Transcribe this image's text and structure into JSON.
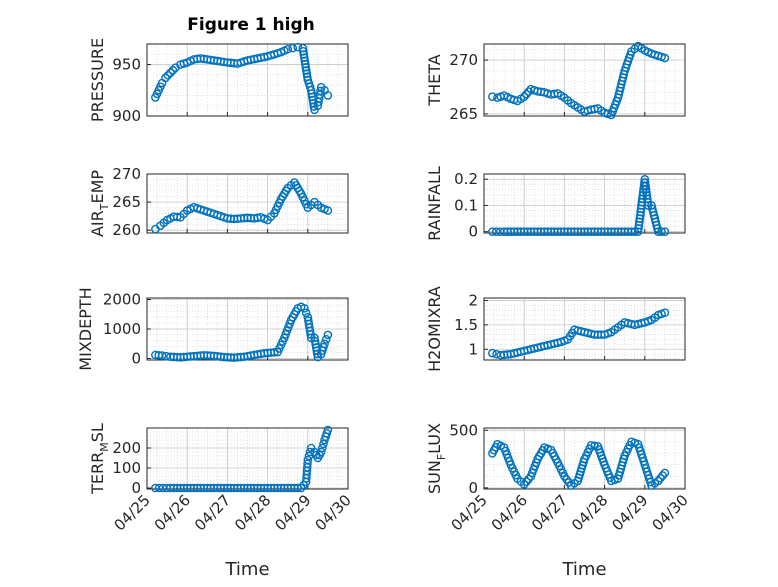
{
  "figure": {
    "title": "Figure 1 high",
    "marker_color": "#0072BD",
    "grid": true
  },
  "chart_data": [
    {
      "type": "scatter",
      "ylabel": "PRESSURE",
      "ylim": [
        900,
        970
      ],
      "yticks": [
        900,
        950
      ],
      "ytick_labels": [
        "900",
        "950"
      ],
      "show_xticks": false,
      "x": [
        "04/25 05:00",
        "04/25 07:00",
        "04/25 09:00",
        "04/25 11:00",
        "04/25 14:00",
        "04/25 17:00",
        "04/25 20:00",
        "04/26 00:00",
        "04/26 04:00",
        "04/26 08:00",
        "04/26 12:00",
        "04/26 16:00",
        "04/26 20:00",
        "04/27 00:00",
        "04/27 06:00",
        "04/27 12:00",
        "04/27 18:00",
        "04/28 00:00",
        "04/28 04:00",
        "04/28 08:00",
        "04/28 12:00",
        "04/28 15:00",
        "04/28 18:00",
        "04/28 21:00",
        "04/29 00:00",
        "04/29 02:00",
        "04/29 04:00",
        "04/29 06:00",
        "04/29 08:00",
        "04/29 10:00",
        "04/29 12:00"
      ],
      "y": [
        918,
        925,
        932,
        937,
        942,
        947,
        950,
        952,
        955,
        956,
        955,
        954,
        953,
        952,
        951,
        954,
        956,
        958,
        960,
        962,
        965,
        966,
        967,
        966,
        935,
        925,
        906,
        910,
        928,
        925,
        920
      ]
    },
    {
      "type": "scatter",
      "ylabel": "THETA",
      "ylim": [
        264.8,
        271.5
      ],
      "yticks": [
        265,
        270
      ],
      "ytick_labels": [
        "265",
        "270"
      ],
      "show_xticks": false,
      "x": [
        "04/25 05:00",
        "04/25 08:00",
        "04/25 12:00",
        "04/25 16:00",
        "04/25 20:00",
        "04/26 00:00",
        "04/26 04:00",
        "04/26 08:00",
        "04/26 12:00",
        "04/26 16:00",
        "04/26 20:00",
        "04/27 00:00",
        "04/27 04:00",
        "04/27 08:00",
        "04/27 12:00",
        "04/27 16:00",
        "04/27 20:00",
        "04/28 00:00",
        "04/28 04:00",
        "04/28 08:00",
        "04/28 12:00",
        "04/28 16:00",
        "04/28 20:00",
        "04/29 00:00",
        "04/29 04:00",
        "04/29 08:00",
        "04/29 12:00"
      ],
      "y": [
        266.6,
        266.5,
        266.7,
        266.4,
        266.2,
        266.6,
        267.3,
        267.1,
        267.0,
        266.8,
        266.9,
        266.5,
        266.0,
        265.6,
        265.2,
        265.4,
        265.5,
        265.1,
        264.9,
        266.5,
        269.0,
        270.8,
        271.3,
        270.9,
        270.6,
        270.4,
        270.2
      ]
    },
    {
      "type": "scatter",
      "ylabel": "AIR_TEMP",
      "ylim": [
        259.5,
        270
      ],
      "yticks": [
        260,
        265,
        270
      ],
      "ytick_labels": [
        "260",
        "265",
        "270"
      ],
      "show_xticks": false,
      "x": [
        "04/25 05:00",
        "04/25 08:00",
        "04/25 12:00",
        "04/25 16:00",
        "04/25 20:00",
        "04/26 00:00",
        "04/26 04:00",
        "04/26 08:00",
        "04/26 12:00",
        "04/26 16:00",
        "04/26 20:00",
        "04/27 00:00",
        "04/27 04:00",
        "04/27 08:00",
        "04/27 12:00",
        "04/27 16:00",
        "04/27 20:00",
        "04/28 00:00",
        "04/28 04:00",
        "04/28 08:00",
        "04/28 12:00",
        "04/28 16:00",
        "04/28 20:00",
        "04/29 00:00",
        "04/29 04:00",
        "04/29 08:00",
        "04/29 12:00"
      ],
      "y": [
        260.2,
        260.8,
        261.8,
        262.4,
        262.3,
        263.5,
        264.1,
        263.7,
        263.3,
        262.9,
        262.5,
        262.1,
        262.0,
        262.1,
        262.2,
        262.1,
        262.3,
        261.8,
        263.0,
        265.5,
        267.5,
        268.5,
        266.5,
        264.0,
        265.0,
        264.0,
        263.5
      ]
    },
    {
      "type": "scatter",
      "ylabel": "RAINFALL",
      "ylim": [
        -0.005,
        0.22
      ],
      "yticks": [
        0,
        0.1,
        0.2
      ],
      "ytick_labels": [
        "0",
        "0.1",
        "0.2"
      ],
      "show_xticks": false,
      "x": [
        "04/25 05:00",
        "04/25 12:00",
        "04/25 20:00",
        "04/26 04:00",
        "04/26 12:00",
        "04/26 20:00",
        "04/27 04:00",
        "04/27 12:00",
        "04/27 20:00",
        "04/28 04:00",
        "04/28 08:00",
        "04/28 12:00",
        "04/28 16:00",
        "04/28 20:00",
        "04/29 00:00",
        "04/29 02:00",
        "04/29 04:00",
        "04/29 08:00",
        "04/29 12:00"
      ],
      "y": [
        0,
        0,
        0,
        0,
        0,
        0,
        0,
        0,
        0,
        0,
        0,
        0,
        0,
        0,
        0.2,
        0.1,
        0.1,
        0,
        0
      ]
    },
    {
      "type": "scatter",
      "ylabel": "MIXDEPTH",
      "ylim": [
        -50,
        2050
      ],
      "yticks": [
        0,
        1000,
        2000
      ],
      "ytick_labels": [
        "0",
        "1000",
        "2000"
      ],
      "show_xticks": false,
      "x": [
        "04/25 05:00",
        "04/25 09:00",
        "04/25 14:00",
        "04/25 20:00",
        "04/26 04:00",
        "04/26 10:00",
        "04/26 16:00",
        "04/26 22:00",
        "04/27 04:00",
        "04/27 10:00",
        "04/27 16:00",
        "04/27 22:00",
        "04/28 02:00",
        "04/28 06:00",
        "04/28 10:00",
        "04/28 14:00",
        "04/28 18:00",
        "04/28 20:00",
        "04/28 22:00",
        "04/29 00:00",
        "04/29 02:00",
        "04/29 04:00",
        "04/29 06:00",
        "04/29 08:00",
        "04/29 10:00",
        "04/29 12:00"
      ],
      "y": [
        120,
        100,
        60,
        40,
        80,
        110,
        90,
        50,
        30,
        60,
        120,
        180,
        200,
        220,
        700,
        1300,
        1700,
        1750,
        1700,
        1400,
        700,
        700,
        50,
        150,
        500,
        800
      ]
    },
    {
      "type": "scatter",
      "ylabel": "H2OMIXRA",
      "ylim": [
        0.78,
        2.05
      ],
      "yticks": [
        1,
        1.5,
        2
      ],
      "ytick_labels": [
        "1",
        "1.5",
        "2"
      ],
      "show_xticks": false,
      "x": [
        "04/25 05:00",
        "04/25 10:00",
        "04/25 16:00",
        "04/25 22:00",
        "04/26 04:00",
        "04/26 10:00",
        "04/26 16:00",
        "04/26 22:00",
        "04/27 02:00",
        "04/27 06:00",
        "04/27 12:00",
        "04/27 18:00",
        "04/28 00:00",
        "04/28 04:00",
        "04/28 08:00",
        "04/28 12:00",
        "04/28 18:00",
        "04/29 00:00",
        "04/29 04:00",
        "04/29 08:00",
        "04/29 12:00"
      ],
      "y": [
        0.92,
        0.88,
        0.9,
        0.95,
        1.0,
        1.05,
        1.1,
        1.15,
        1.2,
        1.4,
        1.35,
        1.3,
        1.3,
        1.35,
        1.45,
        1.55,
        1.5,
        1.55,
        1.6,
        1.7,
        1.75
      ]
    },
    {
      "type": "scatter",
      "ylabel": "TERR_MSL",
      "ylim": [
        -5,
        300
      ],
      "yticks": [
        0,
        100,
        200
      ],
      "ytick_labels": [
        "0",
        "100",
        "200"
      ],
      "show_xticks": true,
      "xtick_labels": [
        "04/25",
        "04/26",
        "04/27",
        "04/28",
        "04/29",
        "04/30"
      ],
      "xlabel": "Time",
      "x": [
        "04/25 05:00",
        "04/25 14:00",
        "04/26 00:00",
        "04/26 12:00",
        "04/27 00:00",
        "04/27 12:00",
        "04/28 00:00",
        "04/28 12:00",
        "04/28 20:00",
        "04/28 23:00",
        "04/29 00:00",
        "04/29 02:00",
        "04/29 04:00",
        "04/29 06:00",
        "04/29 08:00",
        "04/29 10:00",
        "04/29 12:00"
      ],
      "y": [
        0,
        0,
        0,
        0,
        0,
        0,
        0,
        0,
        0,
        30,
        140,
        200,
        180,
        150,
        180,
        240,
        290
      ]
    },
    {
      "type": "scatter",
      "ylabel": "SUN_FLUX",
      "ylim": [
        -10,
        520
      ],
      "yticks": [
        0,
        500
      ],
      "ytick_labels": [
        "0",
        "500"
      ],
      "show_xticks": true,
      "xtick_labels": [
        "04/25",
        "04/26",
        "04/27",
        "04/28",
        "04/29",
        "04/30"
      ],
      "xlabel": "Time",
      "x": [
        "04/25 05:00",
        "04/25 08:00",
        "04/25 12:00",
        "04/25 16:00",
        "04/25 20:00",
        "04/26 00:00",
        "04/26 04:00",
        "04/26 08:00",
        "04/26 12:00",
        "04/26 16:00",
        "04/26 20:00",
        "04/27 00:00",
        "04/27 04:00",
        "04/27 08:00",
        "04/27 12:00",
        "04/27 16:00",
        "04/27 20:00",
        "04/28 00:00",
        "04/28 04:00",
        "04/28 08:00",
        "04/28 12:00",
        "04/28 16:00",
        "04/28 20:00",
        "04/29 00:00",
        "04/29 04:00",
        "04/29 08:00",
        "04/29 12:00"
      ],
      "y": [
        300,
        380,
        350,
        200,
        80,
        30,
        100,
        250,
        350,
        330,
        220,
        100,
        20,
        60,
        250,
        370,
        360,
        200,
        60,
        80,
        280,
        400,
        380,
        200,
        20,
        60,
        130
      ]
    }
  ]
}
